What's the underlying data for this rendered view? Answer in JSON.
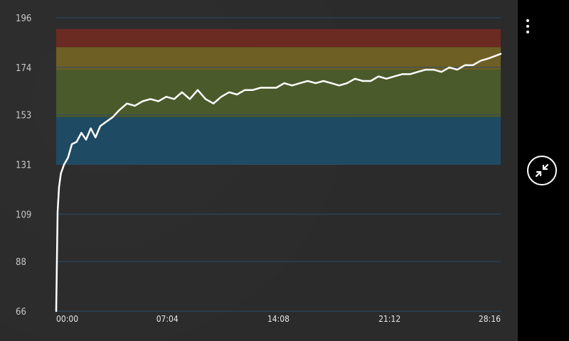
{
  "chart_data": {
    "type": "line",
    "x_ticks": [
      "00:00",
      "07:04",
      "14:08",
      "21:12",
      "28:16"
    ],
    "y_ticks": [
      196,
      174,
      153,
      131,
      109,
      88,
      66
    ],
    "xlim": [
      0,
      28.27
    ],
    "ylim": [
      66,
      196
    ],
    "zones": [
      {
        "from": 131,
        "to": 152,
        "color": "#1f4a63"
      },
      {
        "from": 152,
        "to": 173,
        "color": "#4b5a2a"
      },
      {
        "from": 173,
        "to": 183,
        "color": "#6e5f24"
      },
      {
        "from": 183,
        "to": 191,
        "color": "#6b2a22"
      }
    ],
    "grid": true,
    "series": [
      {
        "line_color": "#ffffff",
        "x": [
          0,
          0.09,
          0.18,
          0.3,
          0.5,
          0.75,
          1.0,
          1.3,
          1.6,
          1.9,
          2.2,
          2.5,
          2.8,
          3.2,
          3.6,
          4.0,
          4.5,
          5.0,
          5.5,
          6.0,
          6.5,
          7.0,
          7.5,
          8.0,
          8.5,
          9.0,
          9.5,
          10.0,
          10.5,
          11.0,
          11.5,
          12.0,
          12.5,
          13.0,
          13.5,
          14.0,
          14.5,
          15.0,
          15.5,
          16.0,
          16.5,
          17.0,
          17.5,
          18.0,
          18.5,
          19.0,
          19.5,
          20.0,
          20.5,
          21.0,
          21.5,
          22.0,
          22.5,
          23.0,
          23.5,
          24.0,
          24.5,
          25.0,
          25.5,
          26.0,
          26.5,
          27.0,
          27.5,
          28.27
        ],
        "y": [
          66,
          110,
          121,
          127,
          131,
          134,
          140,
          141,
          145,
          142,
          147,
          143,
          148,
          150,
          152,
          155,
          158,
          157,
          159,
          160,
          159,
          161,
          160,
          163,
          160,
          164,
          160,
          158,
          161,
          163,
          162,
          164,
          164,
          165,
          165,
          165,
          167,
          166,
          167,
          168,
          167,
          168,
          167,
          166,
          167,
          169,
          168,
          168,
          170,
          169,
          170,
          171,
          171,
          172,
          173,
          173,
          172,
          174,
          173,
          175,
          175,
          177,
          178,
          180
        ]
      }
    ]
  },
  "icons": {
    "menu": "vertical-ellipsis-icon",
    "collapse": "collapse-arrows-icon"
  }
}
